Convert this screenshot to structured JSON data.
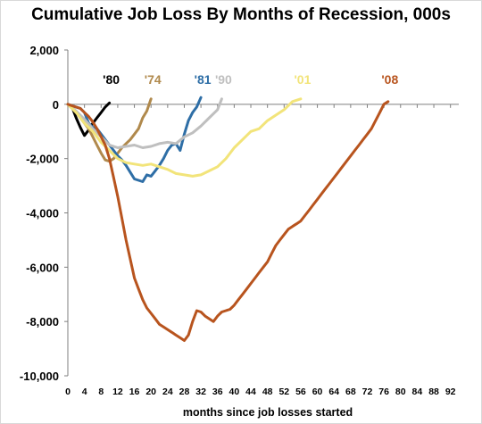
{
  "chart_data": {
    "type": "line",
    "title": "Cumulative Job Loss By Months of Recession, 000s",
    "xlabel": "months since job losses started",
    "ylabel": "",
    "xlim": [
      0,
      94
    ],
    "ylim": [
      -10000,
      2000
    ],
    "x_ticks": [
      "0",
      "4",
      "8",
      "12",
      "16",
      "20",
      "24",
      "28",
      "32",
      "36",
      "40",
      "44",
      "48",
      "52",
      "56",
      "60",
      "64",
      "68",
      "72",
      "76",
      "80",
      "84",
      "88",
      "92"
    ],
    "y_ticks": [
      "2,000",
      "0",
      "-2,000",
      "-4,000",
      "-6,000",
      "-8,000",
      "-10,000"
    ],
    "grid": false,
    "legend": "series labels placed near line ends",
    "series": [
      {
        "name": "'80",
        "color": "#000000",
        "points": [
          [
            0,
            0
          ],
          [
            1,
            -100
          ],
          [
            2,
            -500
          ],
          [
            3,
            -850
          ],
          [
            4,
            -1150
          ],
          [
            5,
            -950
          ],
          [
            6,
            -700
          ],
          [
            7,
            -500
          ],
          [
            8,
            -300
          ],
          [
            9,
            -100
          ],
          [
            10,
            50
          ]
        ]
      },
      {
        "name": "'74",
        "color": "#b0894c",
        "points": [
          [
            0,
            0
          ],
          [
            1,
            -150
          ],
          [
            2,
            -300
          ],
          [
            3,
            -500
          ],
          [
            4,
            -700
          ],
          [
            5,
            -900
          ],
          [
            6,
            -1200
          ],
          [
            7,
            -1500
          ],
          [
            8,
            -1800
          ],
          [
            9,
            -2050
          ],
          [
            10,
            -2100
          ],
          [
            11,
            -2000
          ],
          [
            12,
            -1800
          ],
          [
            13,
            -1600
          ],
          [
            14,
            -1450
          ],
          [
            15,
            -1300
          ],
          [
            16,
            -1100
          ],
          [
            17,
            -900
          ],
          [
            18,
            -500
          ],
          [
            19,
            -250
          ],
          [
            20,
            200
          ]
        ]
      },
      {
        "name": "'81",
        "color": "#2e6ea6",
        "points": [
          [
            0,
            0
          ],
          [
            1,
            -50
          ],
          [
            2,
            -100
          ],
          [
            3,
            -150
          ],
          [
            4,
            -300
          ],
          [
            5,
            -700
          ],
          [
            6,
            -850
          ],
          [
            7,
            -900
          ],
          [
            8,
            -1100
          ],
          [
            9,
            -1300
          ],
          [
            10,
            -1500
          ],
          [
            11,
            -1700
          ],
          [
            12,
            -1900
          ],
          [
            13,
            -2050
          ],
          [
            14,
            -2250
          ],
          [
            15,
            -2500
          ],
          [
            16,
            -2750
          ],
          [
            17,
            -2800
          ],
          [
            18,
            -2850
          ],
          [
            19,
            -2600
          ],
          [
            20,
            -2650
          ],
          [
            21,
            -2450
          ],
          [
            22,
            -2250
          ],
          [
            23,
            -2000
          ],
          [
            24,
            -1700
          ],
          [
            25,
            -1500
          ],
          [
            26,
            -1450
          ],
          [
            27,
            -1700
          ],
          [
            28,
            -1100
          ],
          [
            29,
            -600
          ],
          [
            30,
            -300
          ],
          [
            31,
            -100
          ],
          [
            32,
            250
          ]
        ]
      },
      {
        "name": "'90",
        "color": "#bfbfbf",
        "points": [
          [
            0,
            0
          ],
          [
            2,
            -250
          ],
          [
            4,
            -550
          ],
          [
            6,
            -900
          ],
          [
            8,
            -1200
          ],
          [
            10,
            -1500
          ],
          [
            12,
            -1600
          ],
          [
            14,
            -1550
          ],
          [
            16,
            -1500
          ],
          [
            18,
            -1600
          ],
          [
            20,
            -1550
          ],
          [
            22,
            -1450
          ],
          [
            24,
            -1400
          ],
          [
            26,
            -1450
          ],
          [
            28,
            -1200
          ],
          [
            30,
            -1050
          ],
          [
            32,
            -800
          ],
          [
            34,
            -500
          ],
          [
            36,
            -200
          ],
          [
            37,
            200
          ]
        ]
      },
      {
        "name": "'01",
        "color": "#f2e47a",
        "points": [
          [
            0,
            0
          ],
          [
            2,
            -300
          ],
          [
            4,
            -700
          ],
          [
            6,
            -1000
          ],
          [
            8,
            -1400
          ],
          [
            10,
            -1700
          ],
          [
            12,
            -2000
          ],
          [
            14,
            -2150
          ],
          [
            16,
            -2200
          ],
          [
            18,
            -2250
          ],
          [
            20,
            -2200
          ],
          [
            22,
            -2300
          ],
          [
            24,
            -2400
          ],
          [
            26,
            -2550
          ],
          [
            28,
            -2600
          ],
          [
            30,
            -2650
          ],
          [
            32,
            -2600
          ],
          [
            34,
            -2450
          ],
          [
            36,
            -2300
          ],
          [
            38,
            -2000
          ],
          [
            40,
            -1600
          ],
          [
            42,
            -1300
          ],
          [
            44,
            -1000
          ],
          [
            46,
            -900
          ],
          [
            48,
            -600
          ],
          [
            50,
            -400
          ],
          [
            52,
            -200
          ],
          [
            54,
            100
          ],
          [
            56,
            200
          ]
        ]
      },
      {
        "name": "'08",
        "color": "#b8541e",
        "points": [
          [
            0,
            0
          ],
          [
            1,
            -50
          ],
          [
            2,
            -100
          ],
          [
            3,
            -150
          ],
          [
            4,
            -300
          ],
          [
            5,
            -450
          ],
          [
            6,
            -650
          ],
          [
            7,
            -900
          ],
          [
            8,
            -1200
          ],
          [
            9,
            -1500
          ],
          [
            10,
            -2000
          ],
          [
            11,
            -2700
          ],
          [
            12,
            -3400
          ],
          [
            13,
            -4200
          ],
          [
            14,
            -5000
          ],
          [
            15,
            -5700
          ],
          [
            16,
            -6400
          ],
          [
            17,
            -6800
          ],
          [
            18,
            -7200
          ],
          [
            19,
            -7500
          ],
          [
            20,
            -7700
          ],
          [
            21,
            -7900
          ],
          [
            22,
            -8100
          ],
          [
            23,
            -8200
          ],
          [
            24,
            -8300
          ],
          [
            25,
            -8400
          ],
          [
            26,
            -8500
          ],
          [
            27,
            -8600
          ],
          [
            28,
            -8700
          ],
          [
            29,
            -8500
          ],
          [
            30,
            -8000
          ],
          [
            31,
            -7600
          ],
          [
            32,
            -7650
          ],
          [
            33,
            -7800
          ],
          [
            34,
            -7900
          ],
          [
            35,
            -8000
          ],
          [
            36,
            -7800
          ],
          [
            37,
            -7650
          ],
          [
            38,
            -7600
          ],
          [
            39,
            -7550
          ],
          [
            40,
            -7400
          ],
          [
            41,
            -7200
          ],
          [
            42,
            -7000
          ],
          [
            43,
            -6800
          ],
          [
            44,
            -6600
          ],
          [
            45,
            -6400
          ],
          [
            46,
            -6200
          ],
          [
            47,
            -6000
          ],
          [
            48,
            -5800
          ],
          [
            49,
            -5500
          ],
          [
            50,
            -5200
          ],
          [
            51,
            -5000
          ],
          [
            52,
            -4800
          ],
          [
            53,
            -4600
          ],
          [
            54,
            -4500
          ],
          [
            55,
            -4400
          ],
          [
            56,
            -4300
          ],
          [
            57,
            -4100
          ],
          [
            58,
            -3900
          ],
          [
            59,
            -3700
          ],
          [
            60,
            -3500
          ],
          [
            61,
            -3300
          ],
          [
            62,
            -3100
          ],
          [
            63,
            -2900
          ],
          [
            64,
            -2700
          ],
          [
            65,
            -2500
          ],
          [
            66,
            -2300
          ],
          [
            67,
            -2100
          ],
          [
            68,
            -1900
          ],
          [
            69,
            -1700
          ],
          [
            70,
            -1500
          ],
          [
            71,
            -1300
          ],
          [
            72,
            -1100
          ],
          [
            73,
            -900
          ],
          [
            74,
            -600
          ],
          [
            75,
            -300
          ],
          [
            76,
            0
          ],
          [
            77,
            100
          ]
        ]
      }
    ]
  }
}
